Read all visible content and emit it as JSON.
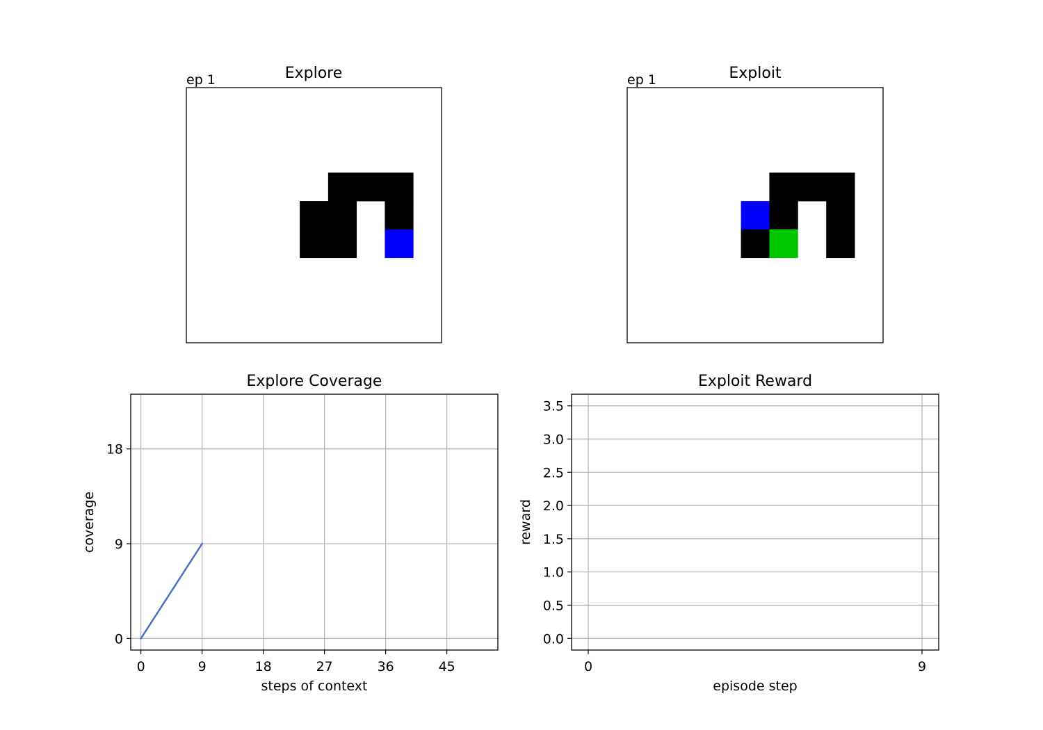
{
  "chart_data": [
    {
      "type": "heatmap",
      "title": "Explore",
      "annotation": "ep 1",
      "grid_size": [
        9,
        9
      ],
      "cells": [
        {
          "row": 3,
          "col": 5,
          "color": "#000000"
        },
        {
          "row": 3,
          "col": 6,
          "color": "#000000"
        },
        {
          "row": 3,
          "col": 7,
          "color": "#000000"
        },
        {
          "row": 4,
          "col": 4,
          "color": "#000000"
        },
        {
          "row": 4,
          "col": 5,
          "color": "#000000"
        },
        {
          "row": 4,
          "col": 7,
          "color": "#000000"
        },
        {
          "row": 5,
          "col": 4,
          "color": "#000000"
        },
        {
          "row": 5,
          "col": 5,
          "color": "#000000"
        },
        {
          "row": 5,
          "col": 7,
          "color": "#0000ff"
        }
      ]
    },
    {
      "type": "heatmap",
      "title": "Exploit",
      "annotation": "ep 1",
      "grid_size": [
        9,
        9
      ],
      "cells": [
        {
          "row": 3,
          "col": 5,
          "color": "#000000"
        },
        {
          "row": 3,
          "col": 6,
          "color": "#000000"
        },
        {
          "row": 3,
          "col": 7,
          "color": "#000000"
        },
        {
          "row": 4,
          "col": 4,
          "color": "#0000ff"
        },
        {
          "row": 4,
          "col": 5,
          "color": "#000000"
        },
        {
          "row": 4,
          "col": 7,
          "color": "#000000"
        },
        {
          "row": 5,
          "col": 4,
          "color": "#000000"
        },
        {
          "row": 5,
          "col": 5,
          "color": "#00c800"
        },
        {
          "row": 5,
          "col": 7,
          "color": "#000000"
        }
      ]
    },
    {
      "type": "line",
      "title": "Explore Coverage",
      "xlabel": "steps of context",
      "ylabel": "coverage",
      "xlim": [
        -1.5,
        52.5
      ],
      "ylim": [
        -1.1,
        23.2
      ],
      "xticks": [
        0,
        9,
        18,
        27,
        36,
        45
      ],
      "yticks": [
        0,
        9,
        18
      ],
      "grid": true,
      "series": [
        {
          "color": "#4472c4",
          "x": [
            0,
            9
          ],
          "y": [
            0,
            9
          ]
        }
      ]
    },
    {
      "type": "line",
      "title": "Exploit Reward",
      "xlabel": "episode step",
      "ylabel": "reward",
      "xlim": [
        -0.45,
        9.45
      ],
      "ylim": [
        -0.175,
        3.675
      ],
      "xticks": [
        0,
        9
      ],
      "yticks": [
        0.0,
        0.5,
        1.0,
        1.5,
        2.0,
        2.5,
        3.0,
        3.5
      ],
      "ytick_labels": [
        "0.0",
        "0.5",
        "1.0",
        "1.5",
        "2.0",
        "2.5",
        "3.0",
        "3.5"
      ],
      "grid": true,
      "series": []
    }
  ]
}
